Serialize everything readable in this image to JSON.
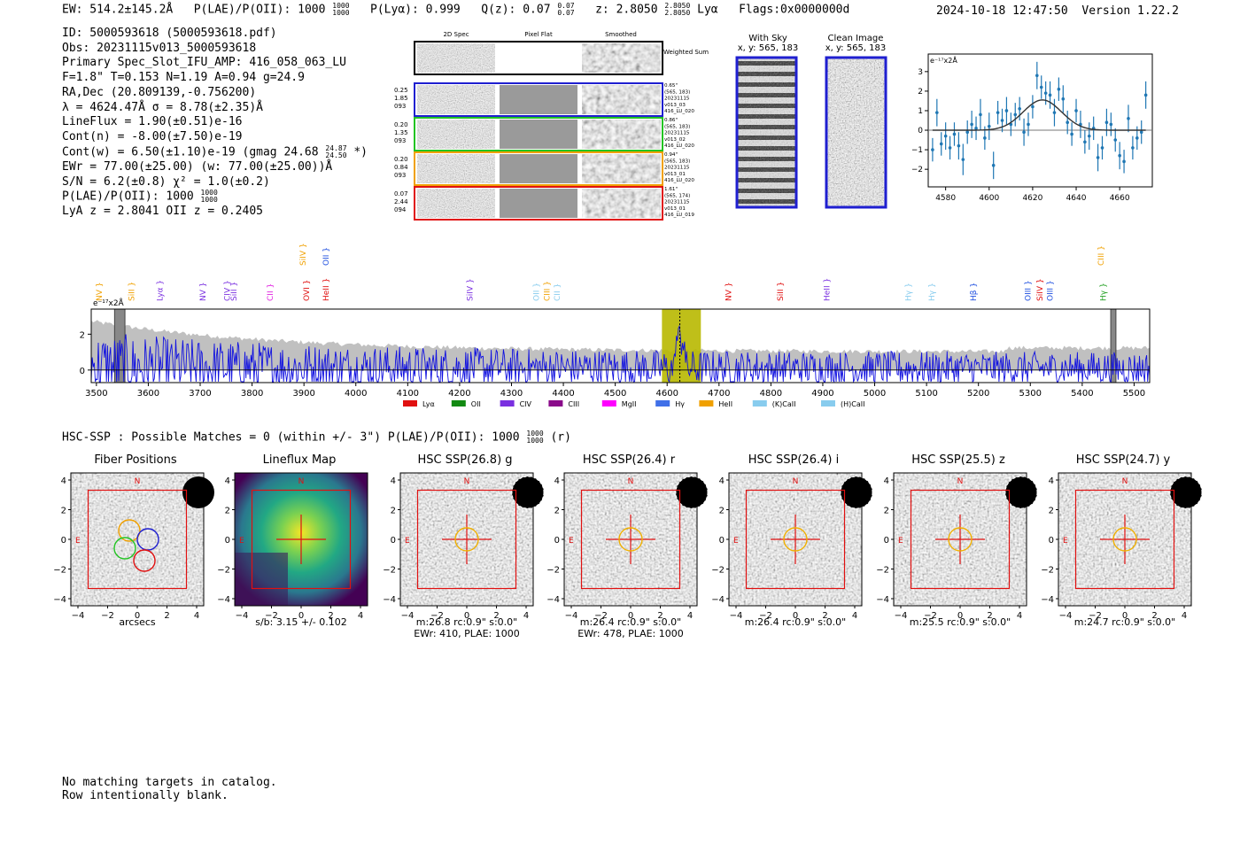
{
  "header": {
    "ew": "EW: 514.2±145.2Å",
    "plae": "P(LAE)/P(OII): 1000",
    "plae_hi": "1000",
    "plae_lo": "1000",
    "plya": "P(Lyα): 0.999",
    "qz": "Q(z): 0.07",
    "qz_hi": "0.07",
    "qz_lo": "0.07",
    "z": "z: 2.8050",
    "z_hi": "2.8050",
    "z_lo": "2.8050",
    "line": "Lyα",
    "flags": "Flags:0x0000000d",
    "timestamp": "2024-10-18 12:47:50",
    "version": "Version 1.22.2"
  },
  "info": {
    "lines": [
      "ID: 5000593618 (5000593618.pdf)",
      "Obs: 20231115v013_5000593618",
      "Primary Spec_Slot_IFU_AMP: 416_058_063_LU",
      "F=1.8\"  T=0.153  N=1.19  A=0.94  g=24.9",
      "RA,Dec (20.809139,-0.756200)",
      "λ = 4624.47Å   σ = 8.78(±2.35)Å",
      "LineFlux = 1.90(±0.51)e-16",
      "Cont(n) = -8.00(±7.50)e-19"
    ],
    "contw": "Cont(w) = 6.50(±1.10)e-19 (gmag 24.68",
    "contw_hi": "24.87",
    "contw_lo": "24.50",
    "contw_tail": "*)",
    "lines2": [
      "EWr = 77.00(±25.00) (w: 77.00(±25.00))Å",
      "S/N = 6.2(±0.8)  χ² = 1.0(±0.2)"
    ],
    "plae_line": "P(LAE)/P(OII): 1000",
    "plae_line_hi": "1000",
    "plae_line_lo": "1000",
    "z_line": "LyA z = 2.8041  OII z = 0.2405"
  },
  "cutouts": {
    "col_headers": [
      "2D Spec",
      "Pixel Flat",
      "Smoothed"
    ],
    "weighted_sum": "Weighted Sum",
    "rows": [
      {
        "left": [
          "0.25",
          "1.85",
          "093"
        ],
        "right": [
          "0.65\"",
          "(565, 183)",
          "20231115",
          "v013_03",
          "416_LU_020"
        ],
        "color": "#1f1fd0"
      },
      {
        "left": [
          "0.20",
          "1.35",
          "093"
        ],
        "right": [
          "0.86\"",
          "(565, 183)",
          "20231115",
          "v013_02",
          "416_LU_020"
        ],
        "color": "#22c422"
      },
      {
        "left": [
          "0.20",
          "0.84",
          "093"
        ],
        "right": [
          "0.94\"",
          "(565, 183)",
          "20231115",
          "v013_01",
          "416_LU_020"
        ],
        "color": "#f0a000"
      },
      {
        "left": [
          "0.07",
          "2.44",
          "094"
        ],
        "right": [
          "1.61\"",
          "(565, 174)",
          "20231115",
          "v013_01",
          "416_LU_019"
        ],
        "color": "#e01010"
      }
    ],
    "with_sky": "With Sky",
    "with_sky_xy": "x, y: 565, 183",
    "clean": "Clean Image",
    "clean_xy": "x, y: 565, 183"
  },
  "zoom_chart": {
    "type": "scatter",
    "scale_label": "e⁻¹⁷x2Å",
    "xlim": [
      4572,
      4675
    ],
    "ylim": [
      -2.9,
      3.9
    ],
    "xticks": [
      4580,
      4600,
      4620,
      4640,
      4660
    ],
    "yticks": [
      -2,
      -1,
      0,
      1,
      2,
      3
    ],
    "gauss": {
      "center": 4624.47,
      "sigma": 8.78,
      "amp": 1.55
    },
    "x": [
      4574,
      4576,
      4578,
      4580,
      4582,
      4584,
      4586,
      4588,
      4590,
      4592,
      4594,
      4596,
      4598,
      4600,
      4602,
      4604,
      4606,
      4608,
      4610,
      4612,
      4614,
      4616,
      4618,
      4620,
      4622,
      4624,
      4626,
      4628,
      4630,
      4632,
      4634,
      4636,
      4638,
      4640,
      4642,
      4644,
      4646,
      4648,
      4650,
      4652,
      4654,
      4656,
      4658,
      4660,
      4662,
      4664,
      4666,
      4668,
      4670,
      4672
    ],
    "y": [
      -1.0,
      0.9,
      -0.7,
      -0.3,
      -0.9,
      -0.2,
      -0.8,
      -1.5,
      -0.1,
      0.3,
      0.1,
      0.8,
      -0.4,
      0.2,
      -1.8,
      0.9,
      0.5,
      1.0,
      0.3,
      0.8,
      1.1,
      -0.1,
      0.3,
      1.2,
      2.8,
      2.2,
      1.9,
      1.8,
      0.9,
      2.1,
      1.6,
      0.4,
      -0.2,
      1.0,
      0.3,
      -0.6,
      -0.3,
      0.1,
      -1.4,
      -0.9,
      0.4,
      0.3,
      -0.5,
      -1.3,
      -1.6,
      0.6,
      -0.9,
      -0.4,
      -0.1,
      1.8
    ],
    "err": [
      0.6,
      0.7,
      0.6,
      0.7,
      0.6,
      0.6,
      0.7,
      0.8,
      0.6,
      0.7,
      0.6,
      0.8,
      0.6,
      0.7,
      0.7,
      0.6,
      0.6,
      0.7,
      0.6,
      0.6,
      0.6,
      0.7,
      0.6,
      0.6,
      0.7,
      0.6,
      0.6,
      0.7,
      0.7,
      0.6,
      0.7,
      0.6,
      0.6,
      0.6,
      0.7,
      0.6,
      0.7,
      0.6,
      0.7,
      0.6,
      0.7,
      0.6,
      0.6,
      0.7,
      0.6,
      0.7,
      0.6,
      0.6,
      0.6,
      0.7
    ]
  },
  "spectrum": {
    "type": "line",
    "scale_label": "e⁻¹⁷x2Å",
    "xlim": [
      3490,
      5530
    ],
    "ylim": [
      -0.7,
      3.4
    ],
    "xticks": [
      3500,
      3600,
      3700,
      3800,
      3900,
      4000,
      4100,
      4200,
      4300,
      4400,
      4500,
      4600,
      4700,
      4800,
      4900,
      5000,
      5100,
      5200,
      5300,
      5400,
      5500
    ],
    "yticks": [
      0,
      2
    ],
    "highlight": [
      4590,
      4665
    ],
    "marker": 4624.47,
    "masks": [
      [
        3535,
        3555
      ],
      [
        5455,
        5465
      ]
    ],
    "line_marks": [
      {
        "name": "NV",
        "x": 3505,
        "color": "#f0a000",
        "level": "low"
      },
      {
        "name": "SiII",
        "x": 3568,
        "color": "#f0a000",
        "level": "low"
      },
      {
        "name": "Lyα",
        "x": 3622,
        "color": "#7a30e0",
        "level": "low"
      },
      {
        "name": "NV",
        "x": 3705,
        "color": "#7a30e0",
        "level": "low"
      },
      {
        "name": "CIV",
        "x": 3752,
        "color": "#7a30e0",
        "level": "low"
      },
      {
        "name": "SiII",
        "x": 3765,
        "color": "#7a30e0",
        "level": "low"
      },
      {
        "name": "CII",
        "x": 3835,
        "color": "#e020e0",
        "level": "low"
      },
      {
        "name": "SiIV",
        "x": 3898,
        "color": "#f0a000",
        "level": "high"
      },
      {
        "name": "OVI",
        "x": 3905,
        "color": "#e01010",
        "level": "low"
      },
      {
        "name": "OII",
        "x": 3942,
        "color": "#2050e0",
        "level": "high"
      },
      {
        "name": "HeII",
        "x": 3942,
        "color": "#e01010",
        "level": "low"
      },
      {
        "name": "SiIV",
        "x": 4220,
        "color": "#7a30e0",
        "level": "low"
      },
      {
        "name": "OII",
        "x": 4348,
        "color": "#88ccee",
        "level": "low"
      },
      {
        "name": "CIII",
        "x": 4368,
        "color": "#f0a000",
        "level": "low"
      },
      {
        "name": "CII",
        "x": 4388,
        "color": "#88ccee",
        "level": "low"
      },
      {
        "name": "NV",
        "x": 4718,
        "color": "#e01010",
        "level": "low"
      },
      {
        "name": "SiII",
        "x": 4818,
        "color": "#e01010",
        "level": "low"
      },
      {
        "name": "HeII",
        "x": 4908,
        "color": "#7a30e0",
        "level": "low"
      },
      {
        "name": "Hγ",
        "x": 5065,
        "color": "#88ccee",
        "level": "low"
      },
      {
        "name": "Hγ",
        "x": 5110,
        "color": "#88ccee",
        "level": "low"
      },
      {
        "name": "Hβ",
        "x": 5190,
        "color": "#2050e0",
        "level": "low"
      },
      {
        "name": "OIII",
        "x": 5295,
        "color": "#2050e0",
        "level": "low"
      },
      {
        "name": "SiIV",
        "x": 5318,
        "color": "#e01010",
        "level": "low"
      },
      {
        "name": "OIII",
        "x": 5338,
        "color": "#2050e0",
        "level": "low"
      },
      {
        "name": "CIII",
        "x": 5436,
        "color": "#f0a000",
        "level": "high"
      },
      {
        "name": "Hγ",
        "x": 5440,
        "color": "#22a022",
        "level": "low"
      }
    ],
    "legend": [
      {
        "name": "Lyα",
        "color": "#e01010"
      },
      {
        "name": "OII",
        "color": "#128a12"
      },
      {
        "name": "CIV",
        "color": "#7a30e0"
      },
      {
        "name": "CIII",
        "color": "#8a0a8a"
      },
      {
        "name": "MgII",
        "color": "#ff00ff"
      },
      {
        "name": "Hγ",
        "color": "#4070e8"
      },
      {
        "name": "HeII",
        "color": "#f0a000"
      },
      {
        "name": "(K)CaII",
        "color": "#88ccee"
      },
      {
        "name": "(H)CaII",
        "color": "#88ccee"
      }
    ]
  },
  "hsc": {
    "summary": "HSC-SSP : Possible Matches = 0 (within +/- 3\")  P(LAE)/P(OII): 1000",
    "summary_hi": "1000",
    "summary_lo": "1000",
    "summary_tail": "(r)",
    "axis_ticks": [
      "4",
      "2",
      "0",
      "−2",
      "−4"
    ],
    "xaxis_ticks": [
      "−4",
      "−2",
      "0",
      "2",
      "4"
    ],
    "north": "N",
    "east": "E",
    "panels": [
      {
        "title": "Fiber Positions",
        "foot": [
          "arcsecs"
        ],
        "kind": "fibers"
      },
      {
        "title": "Lineflux Map",
        "foot": [
          "s/b: 3.15 +/- 0.102"
        ],
        "kind": "flux"
      },
      {
        "title": "HSC SSP(26.8) g",
        "foot": [
          "m:26.8 rc:0.9\"  s:0.0\"",
          "EWr: 410, PLAE: 1000"
        ],
        "kind": "hsc"
      },
      {
        "title": "HSC SSP(26.4) r",
        "foot": [
          "m:26.4 rc:0.9\"  s:0.0\"",
          "EWr: 478, PLAE: 1000"
        ],
        "kind": "hsc"
      },
      {
        "title": "HSC SSP(26.4) i",
        "foot": [
          "m:26.4 rc:0.9\"  s:0.0\""
        ],
        "kind": "hsc"
      },
      {
        "title": "HSC SSP(25.5) z",
        "foot": [
          "m:25.5 rc:0.9\"  s:0.0\""
        ],
        "kind": "hsc"
      },
      {
        "title": "HSC SSP(24.7) y",
        "foot": [
          "m:24.7 rc:0.9\"  s:0.0\""
        ],
        "kind": "hsc"
      }
    ]
  },
  "footer": {
    "line1": "No matching targets in catalog.",
    "line2": "Row intentionally blank."
  }
}
